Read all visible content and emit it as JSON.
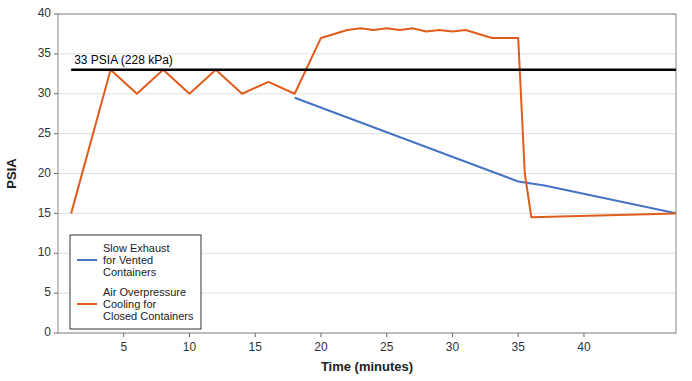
{
  "chart_data": {
    "type": "line",
    "xlabel": "Time (minutes)",
    "ylabel": "PSIA",
    "xlim": [
      0,
      47
    ],
    "ylim": [
      0,
      40
    ],
    "xticks": [
      5,
      10,
      15,
      20,
      25,
      30,
      35,
      40
    ],
    "yticks": [
      0,
      5,
      10,
      15,
      20,
      25,
      30,
      35,
      40
    ],
    "grid": "y",
    "legend": "lower left",
    "series": [
      {
        "name": "Slow Exhaust\nfor Vented\nContainers",
        "color": "#4472c4",
        "x": [
          18,
          35,
          37,
          47
        ],
        "values": [
          29.5,
          19.0,
          18.5,
          15
        ]
      },
      {
        "name": "Air Overpressure\nCooling for\nClosed Containers",
        "color": "#e05c1a",
        "x": [
          1,
          4,
          6,
          8,
          10,
          12,
          14,
          16,
          18,
          20,
          22,
          23,
          24,
          25,
          26,
          27,
          28,
          29,
          30,
          31,
          32,
          33,
          35,
          35.5,
          36,
          47
        ],
        "values": [
          15,
          33,
          30,
          33,
          30,
          33,
          30,
          31.5,
          30,
          37,
          38,
          38.2,
          38,
          38.2,
          38,
          38.2,
          37.8,
          38,
          37.8,
          38,
          37.5,
          37,
          37,
          20,
          14.5,
          15
        ]
      }
    ],
    "reference_lines": [
      {
        "label": "33 PSIA (228 kPa)",
        "y": 33,
        "x": [
          1.0,
          47
        ],
        "color": "black"
      }
    ]
  }
}
